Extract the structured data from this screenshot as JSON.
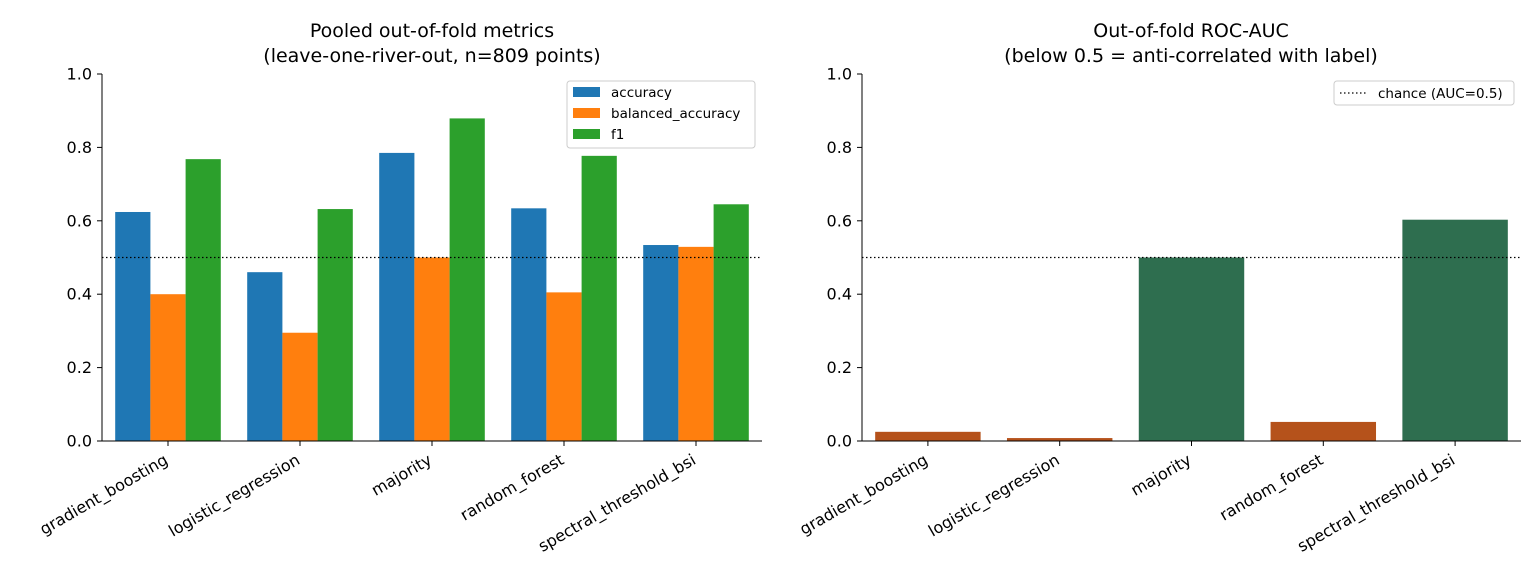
{
  "chart_data": [
    {
      "type": "bar",
      "title": "Pooled out-of-fold metrics",
      "subtitle": "(leave-one-river-out, n=809 points)",
      "categories": [
        "gradient_boosting",
        "logistic_regression",
        "majority",
        "random_forest",
        "spectral_threshold_bsi"
      ],
      "series": [
        {
          "name": "accuracy",
          "color": "#1f77b4",
          "values": [
            0.624,
            0.46,
            0.785,
            0.634,
            0.534
          ]
        },
        {
          "name": "balanced_accuracy",
          "color": "#ff7f0e",
          "values": [
            0.4,
            0.295,
            0.5,
            0.405,
            0.529
          ]
        },
        {
          "name": "f1",
          "color": "#2ca02c",
          "values": [
            0.768,
            0.632,
            0.879,
            0.777,
            0.645
          ]
        }
      ],
      "reference_line": {
        "y": 0.5,
        "style": "dotted"
      },
      "ylim": [
        0,
        1.0
      ],
      "yticks": [
        "0.0",
        "0.2",
        "0.4",
        "0.6",
        "0.8",
        "1.0"
      ],
      "legend_position": "top-right",
      "grid": false
    },
    {
      "type": "bar",
      "title": "Out-of-fold ROC-AUC",
      "subtitle": "(below 0.5 = anti-correlated with label)",
      "categories": [
        "gradient_boosting",
        "logistic_regression",
        "majority",
        "random_forest",
        "spectral_threshold_bsi"
      ],
      "values": [
        0.025,
        0.008,
        0.5,
        0.052,
        0.603
      ],
      "colors": {
        "below_chance": "#b5521b",
        "at_or_above_chance": "#2e6e4f"
      },
      "reference_line": {
        "y": 0.5,
        "style": "dotted",
        "label": "chance (AUC=0.5)"
      },
      "ylim": [
        0,
        1.0
      ],
      "yticks": [
        "0.0",
        "0.2",
        "0.4",
        "0.6",
        "0.8",
        "1.0"
      ],
      "legend_position": "top-right",
      "grid": false
    }
  ]
}
